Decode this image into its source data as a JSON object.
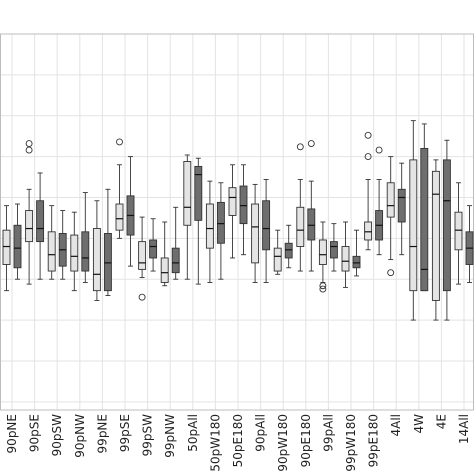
{
  "chart_data": {
    "type": "box",
    "categories": [
      "90pNE",
      "90pSE",
      "90pSW",
      "90pNW",
      "99pNE",
      "99pSE",
      "99pSW",
      "99pNW",
      "50pAll",
      "50pW180",
      "50pE180",
      "90pAll",
      "90pW180",
      "90pE180",
      "99pAll",
      "99pW180",
      "99pE180",
      "4All",
      "4W",
      "4E",
      "14All"
    ],
    "series": [
      {
        "color": "#e4e4e4",
        "values": [
          {
            "whislo": 1.8,
            "q1": 3.4,
            "med": 4.5,
            "q3": 5.5,
            "whishi": 7.0,
            "fliers": []
          },
          {
            "whislo": 2.2,
            "q1": 4.8,
            "med": 5.6,
            "q3": 6.7,
            "whishi": 8.0,
            "fliers": [
              10.4,
              10.8
            ]
          },
          {
            "whislo": 2.5,
            "q1": 3.0,
            "med": 4.0,
            "q3": 5.4,
            "whishi": 7.0,
            "fliers": []
          },
          {
            "whislo": 1.8,
            "q1": 3.0,
            "med": 3.9,
            "q3": 5.2,
            "whishi": 6.6,
            "fliers": []
          },
          {
            "whislo": 1.2,
            "q1": 1.8,
            "med": 2.8,
            "q3": 5.6,
            "whishi": 7.3,
            "fliers": []
          },
          {
            "whislo": 5.0,
            "q1": 5.5,
            "med": 6.2,
            "q3": 7.1,
            "whishi": 9.5,
            "fliers": [
              10.9
            ]
          },
          {
            "whislo": 2.6,
            "q1": 3.1,
            "med": 3.5,
            "q3": 4.8,
            "whishi": 6.3,
            "fliers": [
              1.4
            ]
          },
          {
            "whislo": 2.1,
            "q1": 2.3,
            "med": 2.9,
            "q3": 3.8,
            "whishi": 6.0,
            "fliers": []
          },
          {
            "whislo": 2.5,
            "q1": 5.8,
            "med": 6.9,
            "q3": 9.7,
            "whishi": 10.1,
            "fliers": []
          },
          {
            "whislo": 2.3,
            "q1": 4.4,
            "med": 5.6,
            "q3": 7.1,
            "whishi": 8.5,
            "fliers": []
          },
          {
            "whislo": 3.8,
            "q1": 6.4,
            "med": 7.5,
            "q3": 8.1,
            "whishi": 9.5,
            "fliers": []
          },
          {
            "whislo": 2.3,
            "q1": 3.5,
            "med": 5.7,
            "q3": 7.1,
            "whishi": 8.3,
            "fliers": []
          },
          {
            "whislo": 2.8,
            "q1": 3.0,
            "med": 3.9,
            "q3": 4.4,
            "whishi": 5.5,
            "fliers": []
          },
          {
            "whislo": 3.0,
            "q1": 4.5,
            "med": 5.5,
            "q3": 6.9,
            "whishi": 8.6,
            "fliers": [
              10.6
            ]
          },
          {
            "whislo": 2.3,
            "q1": 3.4,
            "med": 4.0,
            "q3": 4.9,
            "whishi": 6.0,
            "fliers": [
              1.9,
              2.1
            ]
          },
          {
            "whislo": 2.0,
            "q1": 3.0,
            "med": 3.6,
            "q3": 4.5,
            "whishi": 6.0,
            "fliers": []
          },
          {
            "whislo": 4.3,
            "q1": 4.9,
            "med": 5.4,
            "q3": 6.0,
            "whishi": 8.6,
            "fliers": [
              10.0,
              11.3
            ]
          },
          {
            "whislo": 3.7,
            "q1": 6.3,
            "med": 7.0,
            "q3": 8.4,
            "whishi": 10.0,
            "fliers": [
              2.9
            ]
          },
          {
            "whislo": 0.0,
            "q1": 1.8,
            "med": 4.5,
            "q3": 9.8,
            "whishi": 12.2,
            "fliers": []
          },
          {
            "whislo": 0.0,
            "q1": 1.2,
            "med": 7.7,
            "q3": 9.1,
            "whishi": 9.8,
            "fliers": []
          },
          {
            "whislo": 2.2,
            "q1": 4.3,
            "med": 5.5,
            "q3": 6.6,
            "whishi": 8.4,
            "fliers": []
          }
        ]
      },
      {
        "color": "#6e6e6e",
        "values": [
          {
            "whislo": 2.5,
            "q1": 3.2,
            "med": 4.4,
            "q3": 5.8,
            "whishi": 7.1,
            "fliers": []
          },
          {
            "whislo": 2.5,
            "q1": 4.8,
            "med": 5.6,
            "q3": 7.3,
            "whishi": 9.0,
            "fliers": []
          },
          {
            "whislo": 2.5,
            "q1": 3.3,
            "med": 4.3,
            "q3": 5.3,
            "whishi": 6.7,
            "fliers": []
          },
          {
            "whislo": 2.3,
            "q1": 3.0,
            "med": 3.8,
            "q3": 5.4,
            "whishi": 7.8,
            "fliers": []
          },
          {
            "whislo": 1.5,
            "q1": 1.8,
            "med": 3.5,
            "q3": 5.3,
            "whishi": 8.0,
            "fliers": []
          },
          {
            "whislo": 3.3,
            "q1": 5.2,
            "med": 6.4,
            "q3": 7.6,
            "whishi": 10.0,
            "fliers": []
          },
          {
            "whislo": 3.0,
            "q1": 3.8,
            "med": 4.5,
            "q3": 4.9,
            "whishi": 6.2,
            "fliers": []
          },
          {
            "whislo": 2.5,
            "q1": 2.9,
            "med": 3.5,
            "q3": 4.4,
            "whishi": 6.9,
            "fliers": []
          },
          {
            "whislo": 2.2,
            "q1": 6.1,
            "med": 8.9,
            "q3": 9.4,
            "whishi": 9.9,
            "fliers": []
          },
          {
            "whislo": 2.5,
            "q1": 4.7,
            "med": 5.9,
            "q3": 7.2,
            "whishi": 8.4,
            "fliers": []
          },
          {
            "whislo": 4.0,
            "q1": 5.9,
            "med": 7.0,
            "q3": 8.2,
            "whishi": 9.5,
            "fliers": []
          },
          {
            "whislo": 2.3,
            "q1": 4.3,
            "med": 5.6,
            "q3": 7.3,
            "whishi": 8.6,
            "fliers": []
          },
          {
            "whislo": 3.2,
            "q1": 3.8,
            "med": 4.3,
            "q3": 4.7,
            "whishi": 5.8,
            "fliers": []
          },
          {
            "whislo": 3.0,
            "q1": 4.9,
            "med": 5.8,
            "q3": 6.8,
            "whishi": 8.5,
            "fliers": [
              10.8
            ]
          },
          {
            "whislo": 3.0,
            "q1": 3.8,
            "med": 4.5,
            "q3": 4.8,
            "whishi": 5.9,
            "fliers": []
          },
          {
            "whislo": 2.7,
            "q1": 3.2,
            "med": 3.5,
            "q3": 3.9,
            "whishi": 5.5,
            "fliers": []
          },
          {
            "whislo": 4.0,
            "q1": 4.9,
            "med": 5.8,
            "q3": 6.7,
            "whishi": 8.6,
            "fliers": [
              10.4
            ]
          },
          {
            "whislo": 4.0,
            "q1": 6.0,
            "med": 7.5,
            "q3": 8.0,
            "whishi": 9.6,
            "fliers": []
          },
          {
            "whislo": 1.8,
            "q1": 1.8,
            "med": 3.1,
            "q3": 10.5,
            "whishi": 12.0,
            "fliers": []
          },
          {
            "whislo": 0.0,
            "q1": 1.8,
            "med": 7.3,
            "q3": 9.8,
            "whishi": 11.0,
            "fliers": []
          },
          {
            "whislo": 2.3,
            "q1": 3.4,
            "med": 4.4,
            "q3": 5.4,
            "whishi": 7.0,
            "fliers": []
          }
        ]
      }
    ],
    "ylim": [
      -5.5,
      17.5
    ],
    "grid": true
  }
}
